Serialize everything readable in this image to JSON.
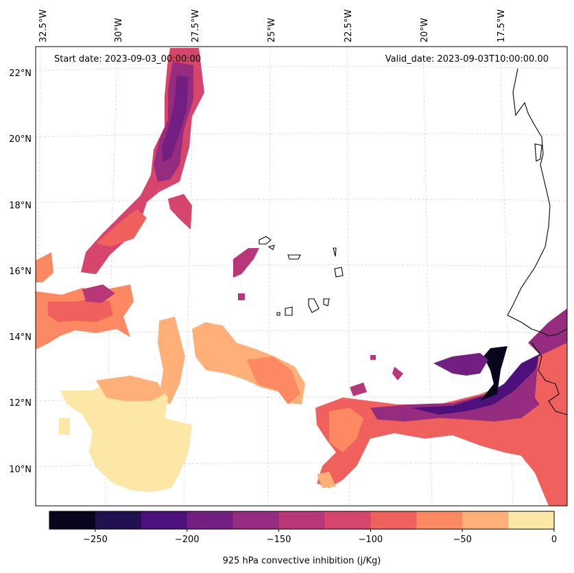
{
  "map": {
    "start_label": "Start date: 2023-09-03_00:00:00",
    "valid_label": "Valid_date: 2023-09-03T10:00:00.00",
    "lon_ticks": [
      "32.5°W",
      "30°W",
      "27.5°W",
      "25°W",
      "22.5°W",
      "20°W",
      "17.5°W"
    ],
    "lat_ticks": [
      "22°N",
      "20°N",
      "18°N",
      "16°N",
      "14°N",
      "12°N",
      "10°N"
    ],
    "lon_values": [
      -32.5,
      -30,
      -27.5,
      -25,
      -22.5,
      -20,
      -17.5
    ],
    "lat_values": [
      22,
      20,
      18,
      16,
      14,
      12,
      10
    ],
    "extent": {
      "lon_min": -32.6,
      "lon_max": -16.0,
      "lat_min": 8.9,
      "lat_max": 22.7
    },
    "gridlines": true,
    "coastline_color": "#000000"
  },
  "colorbar": {
    "label": "925 hPa convective inhibition (j/Kg)",
    "tick_labels": [
      "−250",
      "−200",
      "−150",
      "−100",
      "−50",
      "0"
    ],
    "tick_values": [
      -250,
      -200,
      -150,
      -100,
      -50,
      0
    ],
    "bounds": [
      -275,
      -250,
      -225,
      -200,
      -175,
      -150,
      -125,
      -100,
      -75,
      -50,
      -25,
      0
    ],
    "colors": [
      "#07061c",
      "#221150",
      "#4e117b",
      "#721f81",
      "#952c80",
      "#b73779",
      "#d6456c",
      "#f0605d",
      "#fc8961",
      "#feb078",
      "#fde7a6"
    ]
  }
}
